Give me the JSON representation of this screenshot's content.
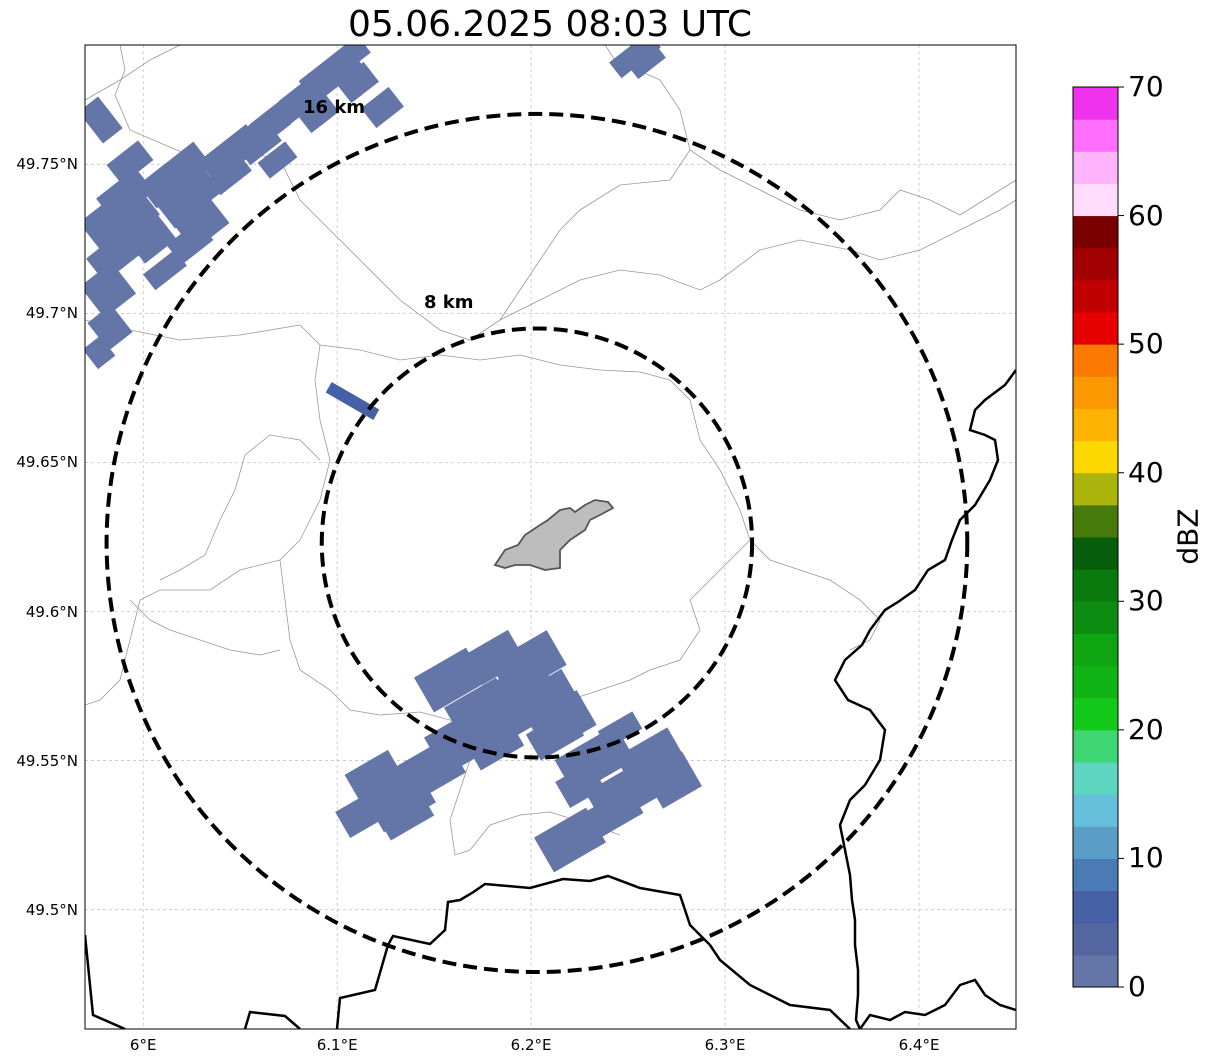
{
  "title": "05.06.2025 08:03 UTC",
  "map": {
    "lon_range": [
      5.97,
      6.45
    ],
    "lat_range": [
      49.46,
      49.79
    ],
    "lat_ticks": [
      {
        "value": 49.75,
        "label": "49.75°N"
      },
      {
        "value": 49.7,
        "label": "49.7°N"
      },
      {
        "value": 49.65,
        "label": "49.65°N"
      },
      {
        "value": 49.6,
        "label": "49.6°N"
      },
      {
        "value": 49.55,
        "label": "49.55°N"
      },
      {
        "value": 49.5,
        "label": "49.5°N"
      }
    ],
    "lon_ticks": [
      {
        "value": 6.0,
        "label": "6°E"
      },
      {
        "value": 6.1,
        "label": "6.1°E"
      },
      {
        "value": 6.2,
        "label": "6.2°E"
      },
      {
        "value": 6.3,
        "label": "6.3°E"
      },
      {
        "value": 6.4,
        "label": "6.4°E"
      }
    ],
    "center": {
      "lon": 6.203,
      "lat": 49.623
    },
    "rings": [
      {
        "label": "8 km",
        "radius_km": 8
      },
      {
        "label": "16 km",
        "radius_km": 16
      }
    ]
  },
  "colorbar": {
    "label": "dBZ",
    "min": 0,
    "max": 70,
    "ticks": [
      {
        "value": 0,
        "label": "0"
      },
      {
        "value": 10,
        "label": "10"
      },
      {
        "value": 20,
        "label": "20"
      },
      {
        "value": 30,
        "label": "30"
      },
      {
        "value": 40,
        "label": "40"
      },
      {
        "value": 50,
        "label": "50"
      },
      {
        "value": 60,
        "label": "60"
      },
      {
        "value": 70,
        "label": "70"
      }
    ],
    "colors": [
      "#6475a8",
      "#5466a0",
      "#4660a6",
      "#4a7bb4",
      "#5a9ec8",
      "#66c0dc",
      "#5ed6c2",
      "#3ed672",
      "#12c818",
      "#10b416",
      "#0ea412",
      "#0c8c10",
      "#0a7a0e",
      "#065e0a",
      "#467a0a",
      "#aab40a",
      "#fcd800",
      "#fcb400",
      "#fc9800",
      "#fc7a00",
      "#e60000",
      "#c00000",
      "#a00000",
      "#7a0000",
      "#ffdcfc",
      "#ffb4fc",
      "#ff6efc",
      "#ee32ee"
    ]
  }
}
